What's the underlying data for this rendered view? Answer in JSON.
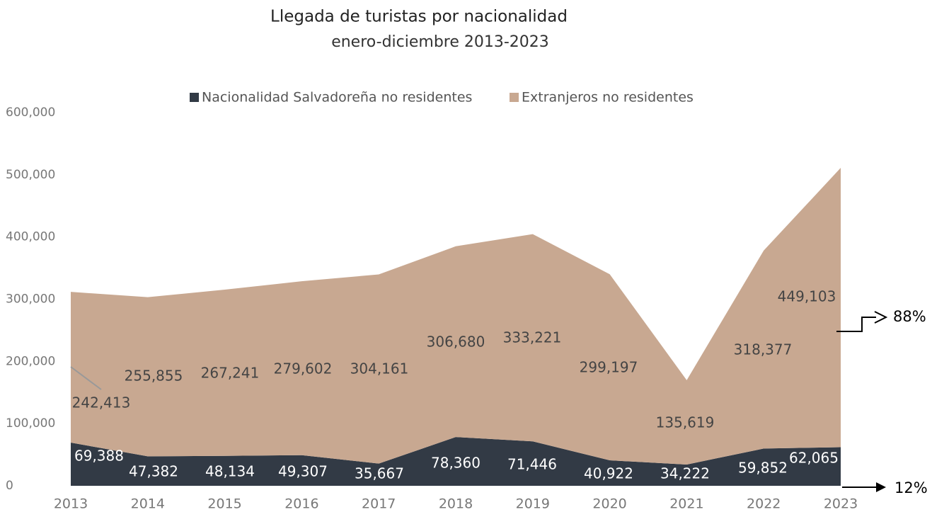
{
  "chart_data": {
    "type": "area",
    "title": "Llegada de turistas por nacionalidad",
    "subtitle": "enero-diciembre 2013-2023",
    "categories": [
      "2013",
      "2014",
      "2015",
      "2016",
      "2017",
      "2018",
      "2019",
      "2020",
      "2021",
      "2022",
      "2023"
    ],
    "stacked": true,
    "series": [
      {
        "name": "Nacionalidad Salvadoreña no residentes",
        "color": "#323a45",
        "values": [
          69388,
          47382,
          48134,
          49307,
          35667,
          78360,
          71446,
          40922,
          34222,
          59852,
          62065
        ],
        "value_labels": [
          "69,388",
          "47,382",
          "48,134",
          "49,307",
          "35,667",
          "78,360",
          "71,446",
          "40,922",
          "34,222",
          "59,852",
          "62,065"
        ]
      },
      {
        "name": "Extranjeros no residentes",
        "color": "#c8a891",
        "values": [
          242413,
          255855,
          267241,
          279602,
          304161,
          306680,
          333221,
          299197,
          135619,
          318377,
          449103
        ],
        "value_labels": [
          "242,413",
          "255,855",
          "267,241",
          "279,602",
          "304,161",
          "306,680",
          "333,221",
          "299,197",
          "135,619",
          "318,377",
          "449,103"
        ]
      }
    ],
    "ylim": [
      0,
      600000
    ],
    "yticks": [
      0,
      {
        "value": 100000,
        "label": "100,000"
      },
      {
        "value": 200000,
        "label": "200,000"
      },
      {
        "value": 300000,
        "label": "300,000"
      },
      {
        "value": 400000,
        "label": "400,000"
      },
      {
        "value": 500000,
        "label": "500,000"
      },
      {
        "value": 600000,
        "label": "600,000"
      }
    ],
    "annotations": [
      "88%",
      "12%"
    ]
  }
}
